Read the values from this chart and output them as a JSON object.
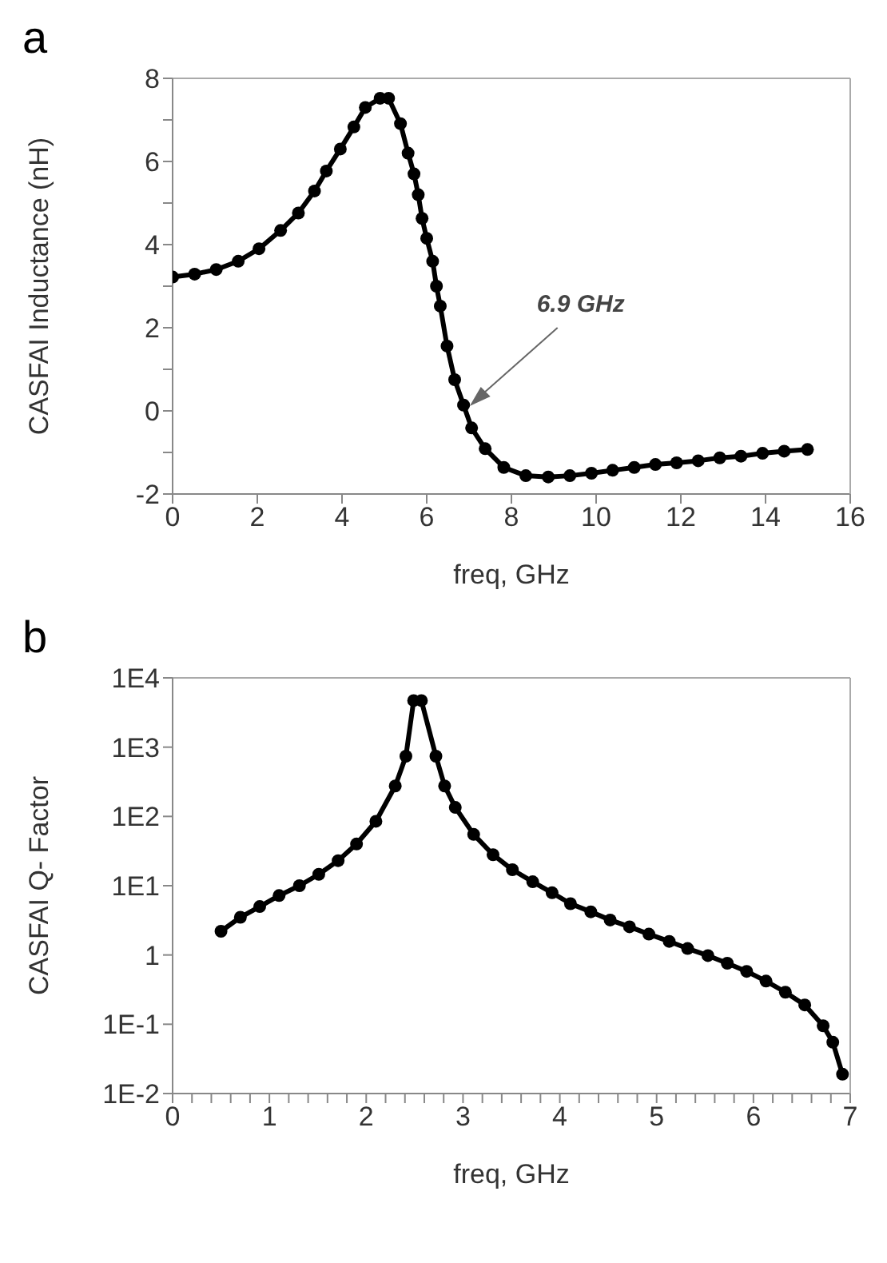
{
  "chart_data": [
    {
      "type": "line",
      "title": "a",
      "xlabel": "freq, GHz",
      "ylabel": "CASFAI  Inductance (nH)",
      "marker": "circle",
      "line_style": "solid",
      "xlim": [
        0,
        16
      ],
      "xticks": [
        0,
        2,
        4,
        6,
        8,
        10,
        12,
        14,
        16
      ],
      "ylim": [
        -2,
        8
      ],
      "yticks": [
        -2,
        {
          "value": -1,
          "label": null
        },
        0,
        {
          "value": 1,
          "label": null
        },
        2,
        {
          "value": 3,
          "label": null
        },
        4,
        {
          "value": 5,
          "label": null
        },
        6,
        {
          "value": 7,
          "label": null
        },
        8
      ],
      "annotations": [
        {
          "text": "6.9 GHz",
          "x": 6.9,
          "y": 0
        }
      ],
      "series": [
        {
          "color": "#000000",
          "x": [
            0,
            0.52,
            1.03,
            1.55,
            2.04,
            2.55,
            2.97,
            3.35,
            3.63,
            3.96,
            4.28,
            4.55,
            4.9,
            5.1,
            5.38,
            5.56,
            5.7,
            5.8,
            5.89,
            6.0,
            6.14,
            6.23,
            6.32,
            6.48,
            6.66,
            6.87,
            7.06,
            7.38,
            7.82,
            8.34,
            8.87,
            9.38,
            9.89,
            10.39,
            10.9,
            11.4,
            11.9,
            12.41,
            12.92,
            13.42,
            13.93,
            14.44,
            14.99
          ],
          "values": [
            3.22,
            3.29,
            3.4,
            3.6,
            3.9,
            4.34,
            4.76,
            5.29,
            5.77,
            6.3,
            6.83,
            7.3,
            7.52,
            7.52,
            6.91,
            6.2,
            5.7,
            5.2,
            4.63,
            4.15,
            3.6,
            3.0,
            2.52,
            1.56,
            0.75,
            0.14,
            -0.41,
            -0.91,
            -1.36,
            -1.56,
            -1.59,
            -1.56,
            -1.5,
            -1.43,
            -1.36,
            -1.29,
            -1.25,
            -1.2,
            -1.13,
            -1.09,
            -1.02,
            -0.97,
            -0.93
          ]
        }
      ]
    },
    {
      "type": "line",
      "title": "b",
      "xlabel": "freq, GHz",
      "ylabel": "CASFAI Q- Factor",
      "marker": "circle",
      "line_style": "solid",
      "log": "y",
      "xlim": [
        0,
        7
      ],
      "xticks": [
        0,
        {
          "value": 0.2,
          "label": null
        },
        {
          "value": 0.4,
          "label": null
        },
        {
          "value": 0.6,
          "label": null
        },
        {
          "value": 0.8,
          "label": null
        },
        1,
        {
          "value": 1.2,
          "label": null
        },
        {
          "value": 1.4,
          "label": null
        },
        {
          "value": 1.6,
          "label": null
        },
        {
          "value": 1.8,
          "label": null
        },
        2,
        {
          "value": 2.2,
          "label": null
        },
        {
          "value": 2.4,
          "label": null
        },
        {
          "value": 2.6,
          "label": null
        },
        {
          "value": 2.8,
          "label": null
        },
        3,
        {
          "value": 3.2,
          "label": null
        },
        {
          "value": 3.4,
          "label": null
        },
        {
          "value": 3.6,
          "label": null
        },
        {
          "value": 3.8,
          "label": null
        },
        4,
        {
          "value": 4.2,
          "label": null
        },
        {
          "value": 4.4,
          "label": null
        },
        {
          "value": 4.6,
          "label": null
        },
        {
          "value": 4.8,
          "label": null
        },
        5,
        {
          "value": 5.2,
          "label": null
        },
        {
          "value": 5.4,
          "label": null
        },
        {
          "value": 5.6,
          "label": null
        },
        {
          "value": 5.8,
          "label": null
        },
        6,
        {
          "value": 6.2,
          "label": null
        },
        {
          "value": 6.4,
          "label": null
        },
        {
          "value": 6.6,
          "label": null
        },
        {
          "value": 6.8,
          "label": null
        },
        7
      ],
      "ylim": [
        0.01,
        10000
      ],
      "yticks": [
        {
          "value": 0.01,
          "label": "1E-2"
        },
        {
          "value": 0.1,
          "label": "1E-1"
        },
        1,
        {
          "value": 10,
          "label": "1E1"
        },
        {
          "value": 100,
          "label": "1E2"
        },
        {
          "value": 1000,
          "label": "1E3"
        },
        {
          "value": 10000,
          "label": "1E4"
        }
      ],
      "series": [
        {
          "color": "#000000",
          "x": [
            0.5,
            0.7,
            0.9,
            1.1,
            1.31,
            1.51,
            1.71,
            1.9,
            2.1,
            2.3,
            2.41,
            2.49,
            2.57,
            2.72,
            2.81,
            2.92,
            3.11,
            3.31,
            3.51,
            3.72,
            3.92,
            4.11,
            4.32,
            4.52,
            4.72,
            4.92,
            5.13,
            5.32,
            5.53,
            5.73,
            5.93,
            6.13,
            6.33,
            6.53,
            6.72,
            6.82,
            6.92
          ],
          "values": [
            2.2,
            3.5,
            5.0,
            7.2,
            10,
            14.6,
            23,
            40,
            85,
            275,
            740,
            4700,
            4700,
            740,
            275,
            135,
            55,
            28,
            17,
            11.4,
            7.9,
            5.5,
            4.2,
            3.2,
            2.55,
            2.0,
            1.57,
            1.24,
            0.98,
            0.76,
            0.58,
            0.42,
            0.29,
            0.19,
            0.095,
            0.055,
            0.019
          ]
        }
      ]
    }
  ]
}
